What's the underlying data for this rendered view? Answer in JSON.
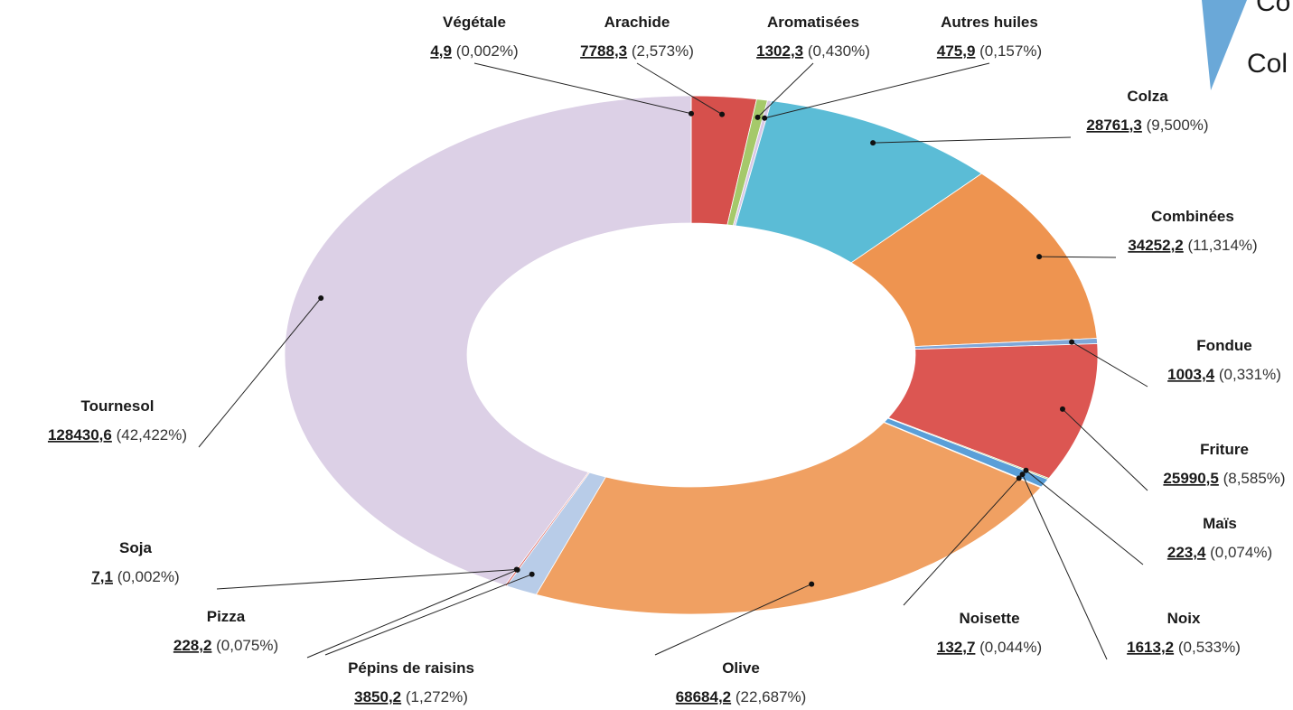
{
  "chart_data": {
    "type": "donut",
    "categories": [
      "Végétale",
      "Arachide",
      "Aromatisées",
      "Autres huiles",
      "Colza",
      "Combinées",
      "Fondue",
      "Friture",
      "Maïs",
      "Noix",
      "Noisette",
      "Olive",
      "Pépins de raisins",
      "Pizza",
      "Soja",
      "Tournesol"
    ],
    "values": [
      4.9,
      7788.3,
      1302.3,
      475.9,
      28761.3,
      34252.2,
      1003.4,
      25990.5,
      223.4,
      1613.2,
      132.7,
      68684.2,
      3850.2,
      228.2,
      7.1,
      128430.6
    ],
    "value_labels": [
      "4,9",
      "7788,3",
      "1302,3",
      "475,9",
      "28761,3",
      "34252,2",
      "1003,4",
      "25990,5",
      "223,4",
      "1613,2",
      "132,7",
      "68684,2",
      "3850,2",
      "228,2",
      "7,1",
      "128430,6"
    ],
    "percentages": [
      0.002,
      2.573,
      0.43,
      0.157,
      9.5,
      11.314,
      0.331,
      8.585,
      0.074,
      0.533,
      0.044,
      22.687,
      1.272,
      0.075,
      0.002,
      42.422
    ],
    "percentage_labels": [
      "(0,002%)",
      "(2,573%)",
      "(0,430%)",
      "(0,157%)",
      "(9,500%)",
      "(11,314%)",
      "(0,331%)",
      "(8,585%)",
      "(0,074%)",
      "(0,533%)",
      "(0,044%)",
      "(22,687%)",
      "(1,272%)",
      "(0,075%)",
      "(0,002%)",
      "(42,422%)"
    ],
    "colors": [
      "#6a9fd4",
      "#d6504c",
      "#a5c96a",
      "#d8c8e6",
      "#5bbcd6",
      "#ee9450",
      "#7fa7d8",
      "#dc5652",
      "#9fc86a",
      "#5a9fd8",
      "#c8bfe0",
      "#f0a062",
      "#b8cce8",
      "#d6504c",
      "#a5c96a",
      "#dcd0e6"
    ],
    "overlay_texts": [
      "Co",
      "Col"
    ]
  }
}
